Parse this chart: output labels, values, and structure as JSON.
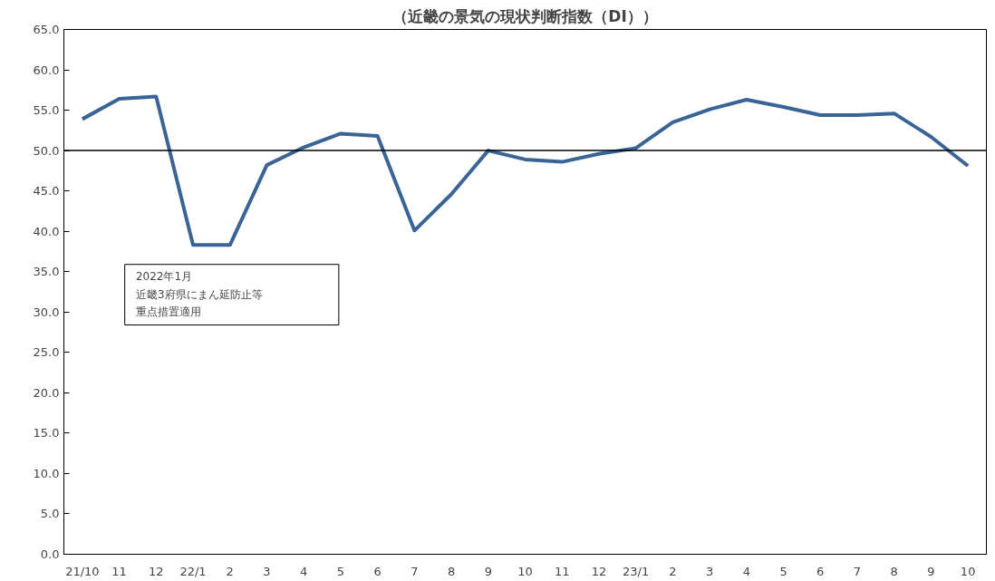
{
  "chart_data": {
    "type": "line",
    "title": "（近畿の景気の現状判断指数（DI））",
    "categories": [
      "21/10",
      "11",
      "12",
      "22/1",
      "2",
      "3",
      "4",
      "5",
      "6",
      "7",
      "8",
      "9",
      "10",
      "11",
      "12",
      "23/1",
      "2",
      "3",
      "4",
      "5",
      "6",
      "7",
      "8",
      "9",
      "10"
    ],
    "series": [
      {
        "color": "#3a6496",
        "values": [
          53.9,
          56.4,
          56.7,
          38.3,
          38.3,
          48.2,
          50.4,
          52.1,
          51.8,
          40.1,
          44.6,
          50.0,
          48.9,
          48.6,
          49.6,
          50.3,
          53.5,
          55.1,
          56.3,
          55.4,
          54.4,
          54.4,
          54.6,
          51.7,
          48.1
        ]
      }
    ],
    "ylim": [
      0,
      65
    ],
    "yticks": [
      {
        "value": 0,
        "label": "0.0"
      },
      {
        "value": 5,
        "label": "5.0"
      },
      {
        "value": 10,
        "label": "10.0"
      },
      {
        "value": 15,
        "label": "15.0"
      },
      {
        "value": 20,
        "label": "20.0"
      },
      {
        "value": 25,
        "label": "25.0"
      },
      {
        "value": 30,
        "label": "30.0"
      },
      {
        "value": 35,
        "label": "35.0"
      },
      {
        "value": 40,
        "label": "40.0"
      },
      {
        "value": 45,
        "label": "45.0"
      },
      {
        "value": 50,
        "label": "50.0"
      },
      {
        "value": 55,
        "label": "55.0"
      },
      {
        "value": 60,
        "label": "60.0"
      },
      {
        "value": 65,
        "label": "65.0"
      }
    ],
    "ref_lines": [
      {
        "axis": "y",
        "value": 50,
        "color": "#000000"
      }
    ],
    "annotations": [
      "2022年1月",
      "近畿3府県にまん延防止等",
      "重点措置適用"
    ],
    "grid": false,
    "marker": "none",
    "line_style": "solid"
  }
}
